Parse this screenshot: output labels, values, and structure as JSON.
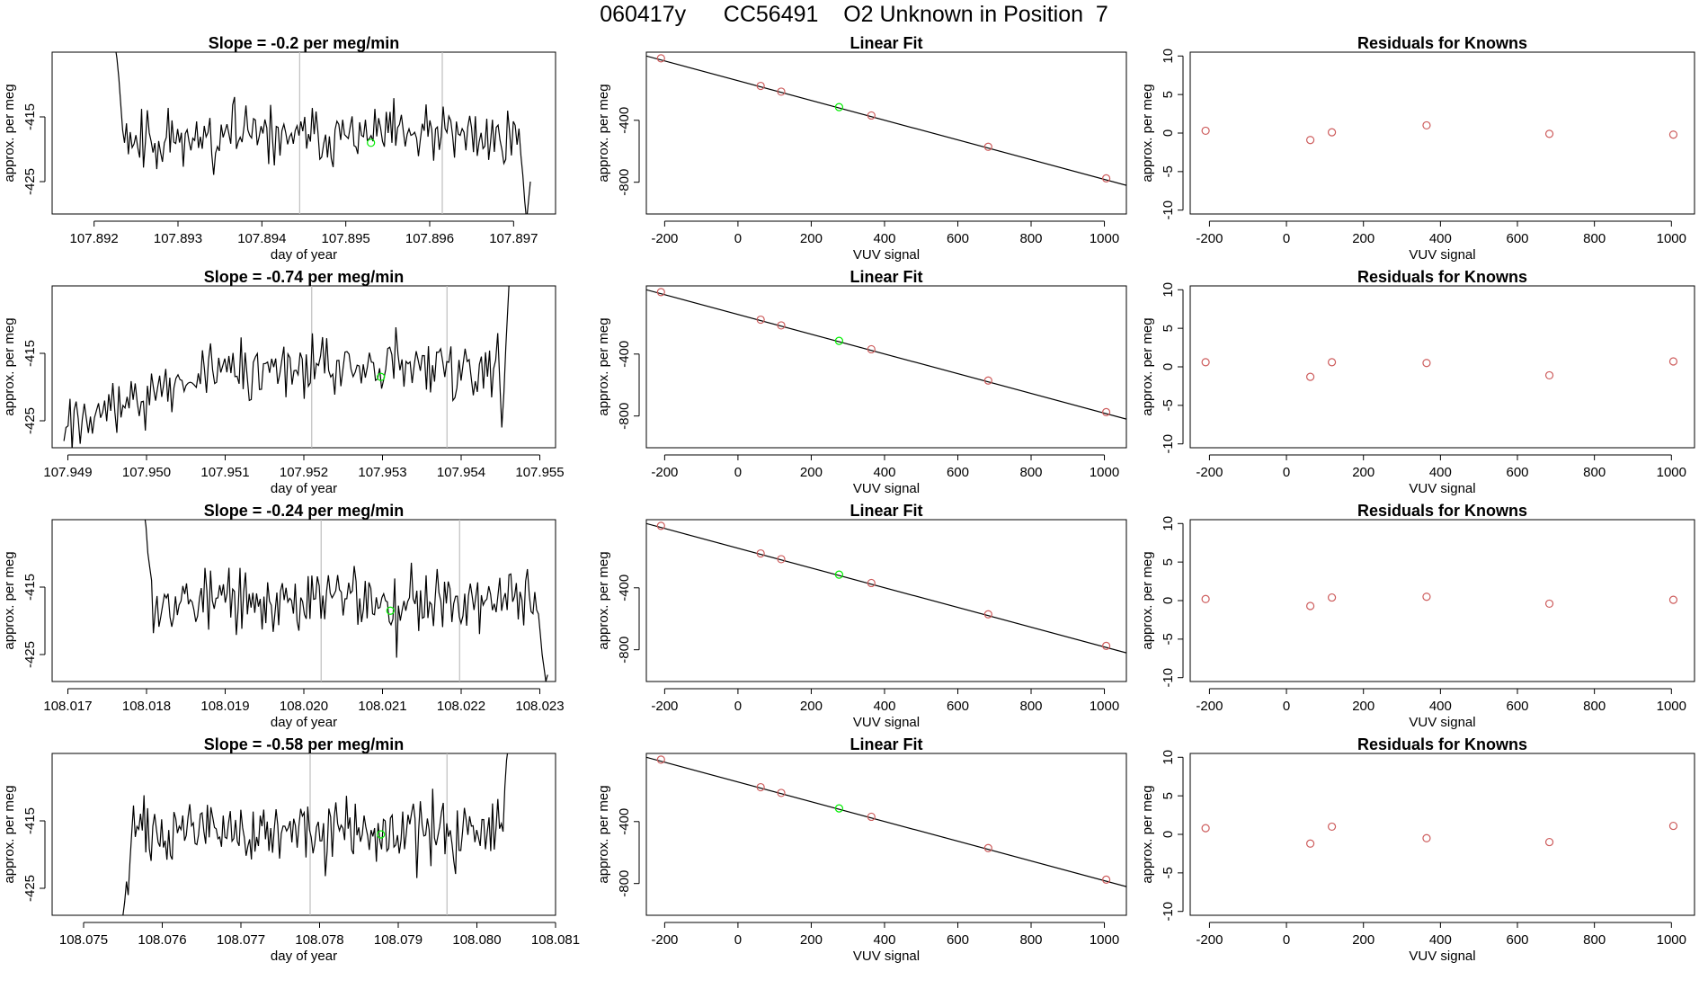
{
  "page": {
    "title": "060417y      CC56491    O2 Unknown in Position  7"
  },
  "colors": {
    "line": "#000000",
    "point": "#cd5c5c",
    "unknown": "#00ee00",
    "guide": "#bebebe",
    "axis": "#000000"
  },
  "chart_data": [
    {
      "type": "line",
      "title": "Slope =  -0.2  per meg/min",
      "xlabel": "day of year",
      "ylabel": "approx. per meg",
      "xlim": [
        107.8915,
        107.8975
      ],
      "ylim": [
        -430,
        -405
      ],
      "xticks": [
        "107.892",
        "107.893",
        "107.894",
        "107.895",
        "107.896",
        "107.897"
      ],
      "yticks": [
        "-425",
        "-415"
      ],
      "vlines": [
        107.89445,
        107.89615
      ],
      "data_start": 107.89225,
      "data_end": 107.8972,
      "unknown_point": {
        "x": 107.8953,
        "y": -419
      },
      "seed": 11,
      "level": -418,
      "noise": 2.2,
      "start_values": [
        -404,
        -406,
        -409,
        -413,
        -417,
        -419,
        -416
      ],
      "end_values": [
        -421,
        -424,
        -428,
        -431,
        -428,
        -425
      ]
    },
    {
      "type": "scatter",
      "title": "Linear Fit",
      "xlabel": "VUV signal",
      "ylabel": "approx. per meg",
      "xlim": [
        -250,
        1060
      ],
      "ylim": [
        -1005,
        40
      ],
      "xticks": [
        "-200",
        "0",
        "200",
        "400",
        "600",
        "800",
        "1000"
      ],
      "yticks": [
        "-400",
        "-800"
      ],
      "points": [
        [
          -210,
          0
        ],
        [
          62,
          -178
        ],
        [
          118,
          -215
        ],
        [
          364,
          -369
        ],
        [
          683,
          -571
        ],
        [
          1005,
          -775
        ]
      ],
      "unknown_point": [
        276,
        -315
      ],
      "fit_line": [
        [
          -250,
          15
        ],
        [
          1060,
          -820
        ]
      ]
    },
    {
      "type": "scatter",
      "title": "Residuals for Knowns",
      "xlabel": "VUV signal",
      "ylabel": "approx. per meg",
      "xlim": [
        -250,
        1060
      ],
      "ylim": [
        -10.5,
        10.5
      ],
      "xticks": [
        "-200",
        "0",
        "200",
        "400",
        "600",
        "800",
        "1000"
      ],
      "yticks": [
        "-10",
        "-5",
        "0",
        "5",
        "10"
      ],
      "points": [
        [
          -210,
          0.3
        ],
        [
          62,
          -0.9
        ],
        [
          118,
          0.1
        ],
        [
          364,
          1.0
        ],
        [
          683,
          -0.1
        ],
        [
          1005,
          -0.2
        ]
      ]
    },
    {
      "type": "line",
      "title": "Slope =  -0.74  per meg/min",
      "xlabel": "day of year",
      "ylabel": "approx. per meg",
      "xlim": [
        107.9488,
        107.9552
      ],
      "ylim": [
        -429,
        -405
      ],
      "xticks": [
        "107.949",
        "107.950",
        "107.951",
        "107.952",
        "107.953",
        "107.954",
        "107.955"
      ],
      "yticks": [
        "-425",
        "-415"
      ],
      "vlines": [
        107.9521,
        107.95382
      ],
      "data_start": 107.94895,
      "data_end": 107.95462,
      "unknown_point": {
        "x": 107.95298,
        "y": -418.5
      },
      "seed": 27,
      "level": -417,
      "noise": 2.2,
      "trend_start": -425,
      "trend_until": 107.951,
      "start_values": [
        -428,
        -426
      ],
      "end_values": [
        -416,
        -412,
        -419,
        -426,
        -421,
        -414,
        -408,
        -402
      ]
    },
    {
      "type": "scatter",
      "title": "Linear Fit",
      "xlabel": "VUV signal",
      "ylabel": "approx. per meg",
      "xlim": [
        -250,
        1060
      ],
      "ylim": [
        -1005,
        40
      ],
      "xticks": [
        "-200",
        "0",
        "200",
        "400",
        "600",
        "800",
        "1000"
      ],
      "yticks": [
        "-400",
        "-800"
      ],
      "points": [
        [
          -210,
          0
        ],
        [
          62,
          -178
        ],
        [
          118,
          -215
        ],
        [
          364,
          -369
        ],
        [
          683,
          -571
        ],
        [
          1005,
          -775
        ]
      ],
      "unknown_point": [
        276,
        -315
      ],
      "fit_line": [
        [
          -250,
          15
        ],
        [
          1060,
          -820
        ]
      ]
    },
    {
      "type": "scatter",
      "title": "Residuals for Knowns",
      "xlabel": "VUV signal",
      "ylabel": "approx. per meg",
      "xlim": [
        -250,
        1060
      ],
      "ylim": [
        -10.5,
        10.5
      ],
      "xticks": [
        "-200",
        "0",
        "200",
        "400",
        "600",
        "800",
        "1000"
      ],
      "yticks": [
        "-10",
        "-5",
        "0",
        "5",
        "10"
      ],
      "points": [
        [
          -210,
          0.6
        ],
        [
          62,
          -1.3
        ],
        [
          118,
          0.6
        ],
        [
          364,
          0.5
        ],
        [
          683,
          -1.1
        ],
        [
          1005,
          0.7
        ]
      ]
    },
    {
      "type": "line",
      "title": "Slope =  -0.24  per meg/min",
      "xlabel": "day of year",
      "ylabel": "approx. per meg",
      "xlim": [
        108.0168,
        108.0232
      ],
      "ylim": [
        -429,
        -405
      ],
      "xticks": [
        "108.017",
        "108.018",
        "108.019",
        "108.020",
        "108.021",
        "108.022",
        "108.023"
      ],
      "yticks": [
        "-425",
        "-415"
      ],
      "vlines": [
        108.02022,
        108.02198
      ],
      "data_start": 108.01797,
      "data_end": 108.0231,
      "unknown_point": {
        "x": 108.0211,
        "y": -418.5
      },
      "seed": 53,
      "level": -417,
      "noise": 2.3,
      "start_values": [
        -404,
        -406,
        -410,
        -412,
        -414
      ],
      "end_values": [
        -419,
        -422,
        -425,
        -427,
        -429,
        -428
      ]
    },
    {
      "type": "scatter",
      "title": "Linear Fit",
      "xlabel": "VUV signal",
      "ylabel": "approx. per meg",
      "xlim": [
        -250,
        1060
      ],
      "ylim": [
        -1005,
        40
      ],
      "xticks": [
        "-200",
        "0",
        "200",
        "400",
        "600",
        "800",
        "1000"
      ],
      "yticks": [
        "-400",
        "-800"
      ],
      "points": [
        [
          -210,
          0
        ],
        [
          62,
          -178
        ],
        [
          118,
          -215
        ],
        [
          364,
          -369
        ],
        [
          683,
          -571
        ],
        [
          1005,
          -775
        ]
      ],
      "unknown_point": [
        276,
        -315
      ],
      "fit_line": [
        [
          -250,
          15
        ],
        [
          1060,
          -820
        ]
      ]
    },
    {
      "type": "scatter",
      "title": "Residuals for Knowns",
      "xlabel": "VUV signal",
      "ylabel": "approx. per meg",
      "xlim": [
        -250,
        1060
      ],
      "ylim": [
        -10.5,
        10.5
      ],
      "xticks": [
        "-200",
        "0",
        "200",
        "400",
        "600",
        "800",
        "1000"
      ],
      "yticks": [
        "-10",
        "-5",
        "0",
        "5",
        "10"
      ],
      "points": [
        [
          -210,
          0.2
        ],
        [
          62,
          -0.7
        ],
        [
          118,
          0.4
        ],
        [
          364,
          0.5
        ],
        [
          683,
          -0.4
        ],
        [
          1005,
          0.1
        ]
      ]
    },
    {
      "type": "line",
      "title": "Slope =  -0.58  per meg/min",
      "xlabel": "day of year",
      "ylabel": "approx. per meg",
      "xlim": [
        108.0746,
        108.081
      ],
      "ylim": [
        -429,
        -405
      ],
      "xticks": [
        "108.075",
        "108.076",
        "108.077",
        "108.078",
        "108.079",
        "108.080",
        "108.081"
      ],
      "yticks": [
        "-425",
        "-415"
      ],
      "vlines": [
        108.07788,
        108.07962
      ],
      "data_start": 108.0755,
      "data_end": 108.0804,
      "unknown_point": {
        "x": 108.07878,
        "y": -417
      },
      "seed": 71,
      "level": -416.5,
      "noise": 2.2,
      "start_values": [
        -429,
        -427,
        -424,
        -426,
        -421
      ],
      "end_values": [
        -410,
        -406,
        -404
      ]
    },
    {
      "type": "scatter",
      "title": "Linear Fit",
      "xlabel": "VUV signal",
      "ylabel": "approx. per meg",
      "xlim": [
        -250,
        1060
      ],
      "ylim": [
        -1005,
        40
      ],
      "xticks": [
        "-200",
        "0",
        "200",
        "400",
        "600",
        "800",
        "1000"
      ],
      "yticks": [
        "-400",
        "-800"
      ],
      "points": [
        [
          -210,
          0
        ],
        [
          62,
          -178
        ],
        [
          118,
          -215
        ],
        [
          364,
          -369
        ],
        [
          683,
          -571
        ],
        [
          1005,
          -775
        ]
      ],
      "unknown_point": [
        276,
        -315
      ],
      "fit_line": [
        [
          -250,
          15
        ],
        [
          1060,
          -820
        ]
      ]
    },
    {
      "type": "scatter",
      "title": "Residuals for Knowns",
      "xlabel": "VUV signal",
      "ylabel": "approx. per meg",
      "xlim": [
        -250,
        1060
      ],
      "ylim": [
        -10.5,
        10.5
      ],
      "xticks": [
        "-200",
        "0",
        "200",
        "400",
        "600",
        "800",
        "1000"
      ],
      "yticks": [
        "-10",
        "-5",
        "0",
        "5",
        "10"
      ],
      "points": [
        [
          -210,
          0.8
        ],
        [
          62,
          -1.2
        ],
        [
          118,
          1.0
        ],
        [
          364,
          -0.5
        ],
        [
          683,
          -1.0
        ],
        [
          1005,
          1.1
        ]
      ]
    }
  ]
}
